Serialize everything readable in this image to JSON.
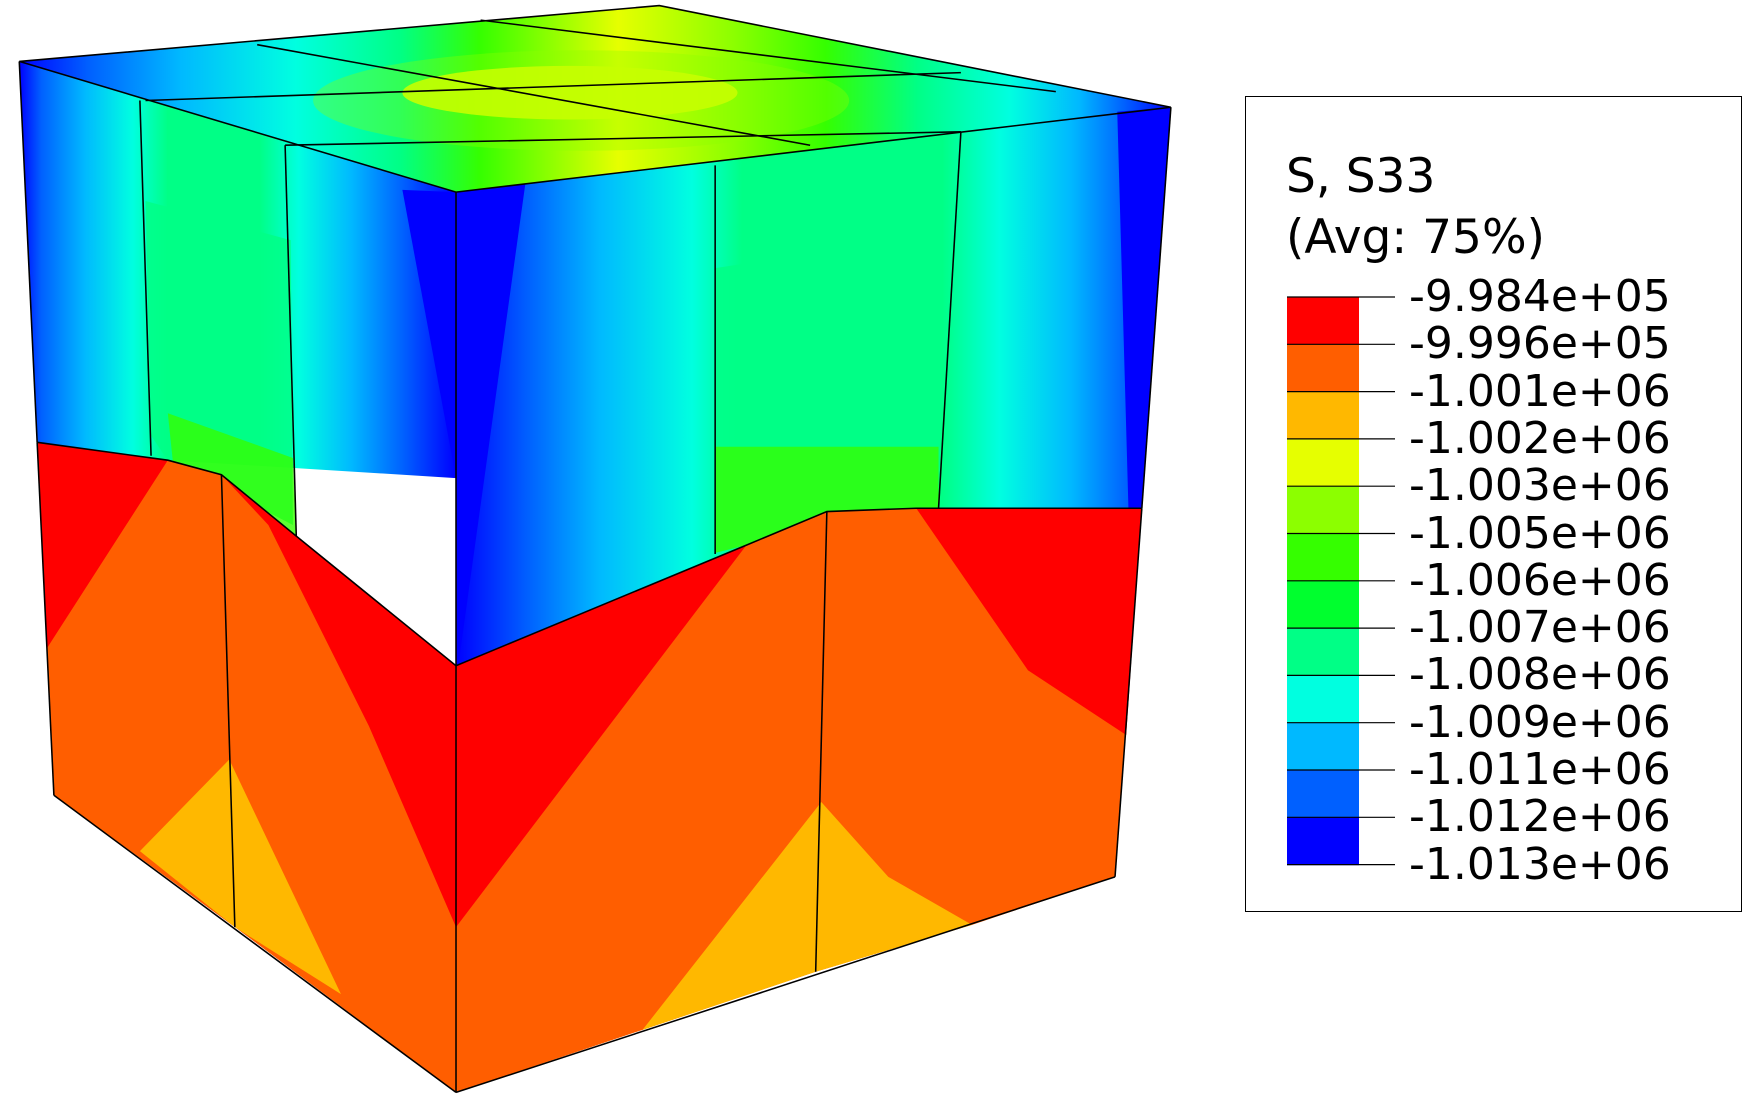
{
  "legend": {
    "title_line1": "S, S33",
    "title_line2": "(Avg: 75%)",
    "labels": [
      "-9.984e+05",
      "-9.996e+05",
      "-1.001e+06",
      "-1.002e+06",
      "-1.003e+06",
      "-1.005e+06",
      "-1.006e+06",
      "-1.007e+06",
      "-1.008e+06",
      "-1.009e+06",
      "-1.011e+06",
      "-1.012e+06",
      "-1.013e+06"
    ],
    "band_colors": [
      "#ff0000",
      "#ff5e00",
      "#ffb800",
      "#e6ff00",
      "#8cff00",
      "#35ff00",
      "#00ff2e",
      "#00ff86",
      "#00ffe0",
      "#00b9ff",
      "#0060ff",
      "#0000ff"
    ]
  },
  "colors": {
    "mesh_lines": "#000000",
    "red": "#ff0000",
    "orange": "#ff5e00",
    "amber": "#ffb800",
    "yellow": "#e6ff00",
    "lime": "#8cff00",
    "green": "#35ff00",
    "bright_green": "#00ff2e",
    "spring_green": "#00ff86",
    "cyan": "#00ffe0",
    "sky": "#00b9ff",
    "azure": "#0060ff",
    "blue": "#0000ff"
  }
}
